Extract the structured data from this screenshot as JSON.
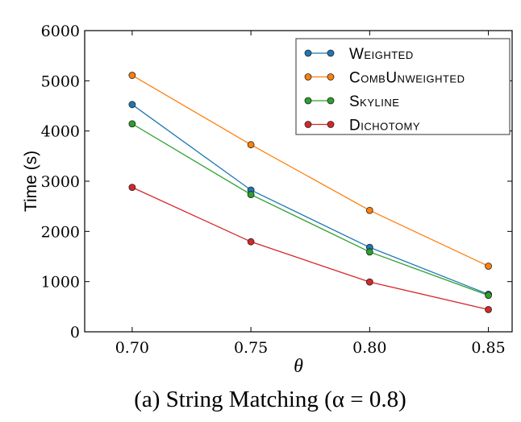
{
  "chart_data": {
    "type": "line",
    "title": "(a) String Matching (α = 0.8)",
    "xlabel": "θ",
    "ylabel": "Time (s)",
    "x": [
      0.7,
      0.75,
      0.8,
      0.85
    ],
    "xticks": [
      "0.70",
      "0.75",
      "0.80",
      "0.85"
    ],
    "yticks": [
      "0",
      "1000",
      "2000",
      "3000",
      "4000",
      "5000",
      "6000"
    ],
    "xlim": [
      0.68,
      0.86
    ],
    "ylim": [
      0,
      6000
    ],
    "grid": false,
    "legend_placement": "top-right",
    "series": [
      {
        "name": "Weighted",
        "color": "#1f77b4",
        "values": [
          4527,
          2824,
          1682,
          747
        ]
      },
      {
        "name": "CombUnweighted",
        "color": "#ff7f0e",
        "values": [
          5109,
          3727,
          2419,
          1308
        ]
      },
      {
        "name": "Skyline",
        "color": "#2ca02c",
        "values": [
          4143,
          2734,
          1591,
          726
        ]
      },
      {
        "name": "Dichotomy",
        "color": "#d62728",
        "values": [
          2878,
          1794,
          993,
          443
        ]
      }
    ]
  }
}
